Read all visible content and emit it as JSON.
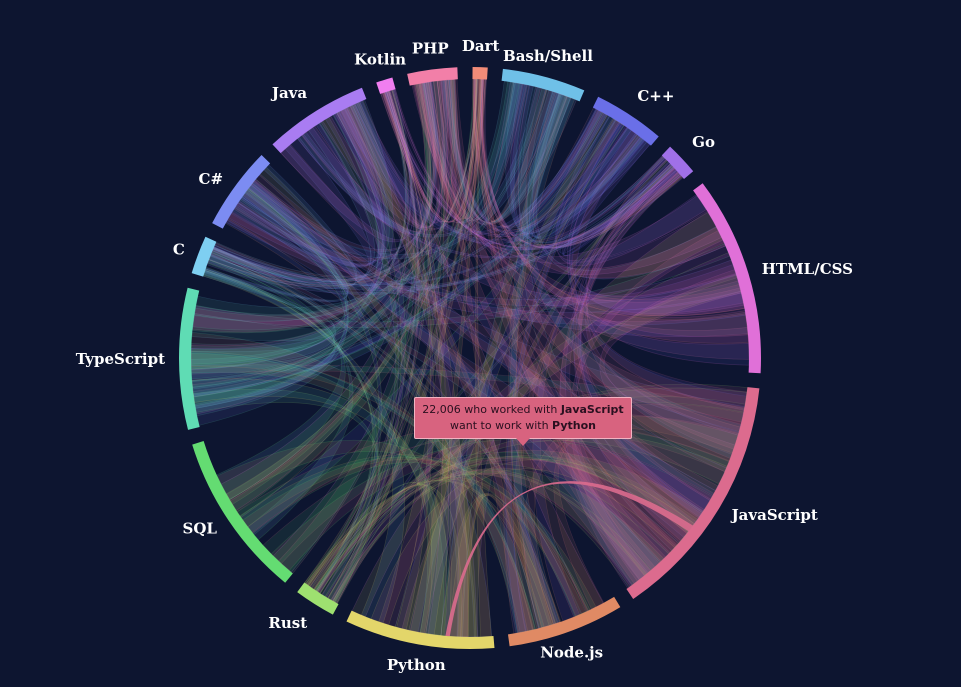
{
  "chart_data": {
    "type": "chord",
    "groups": [
      {
        "name": "JavaScript",
        "size": 15.0,
        "color": "#dc6b8e"
      },
      {
        "name": "Node.js",
        "size": 7.0,
        "color": "#e08a64"
      },
      {
        "name": "Python",
        "size": 9.0,
        "color": "#e3d66a"
      },
      {
        "name": "Rust",
        "size": 2.5,
        "color": "#9ee070"
      },
      {
        "name": "SQL",
        "size": 10.0,
        "color": "#64dc72"
      },
      {
        "name": "TypeScript",
        "size": 8.5,
        "color": "#5fdcb4"
      },
      {
        "name": "C",
        "size": 2.3,
        "color": "#7ecff2"
      },
      {
        "name": "C#",
        "size": 5.0,
        "color": "#7c8cf2"
      },
      {
        "name": "Java",
        "size": 6.3,
        "color": "#a97cf2"
      },
      {
        "name": "Kotlin",
        "size": 1.0,
        "color": "#f07ef0"
      },
      {
        "name": "PHP",
        "size": 3.0,
        "color": "#f27fa8"
      },
      {
        "name": "Dart",
        "size": 0.9,
        "color": "#f28c78"
      },
      {
        "name": "Bash/Shell",
        "size": 5.0,
        "color": "#6fc0e8"
      },
      {
        "name": "C++",
        "size": 4.3,
        "color": "#6a6fe8"
      },
      {
        "name": "Go",
        "size": 2.0,
        "color": "#a070e8"
      },
      {
        "name": "HTML/CSS",
        "size": 12.0,
        "color": "#e070d8"
      }
    ],
    "highlight": {
      "from": "JavaScript",
      "to": "Python",
      "count": "22,006"
    }
  },
  "tooltip": {
    "count": "22,006",
    "pre": "who worked with",
    "source": "JavaScript",
    "mid": "want to work with",
    "target": "Python"
  }
}
